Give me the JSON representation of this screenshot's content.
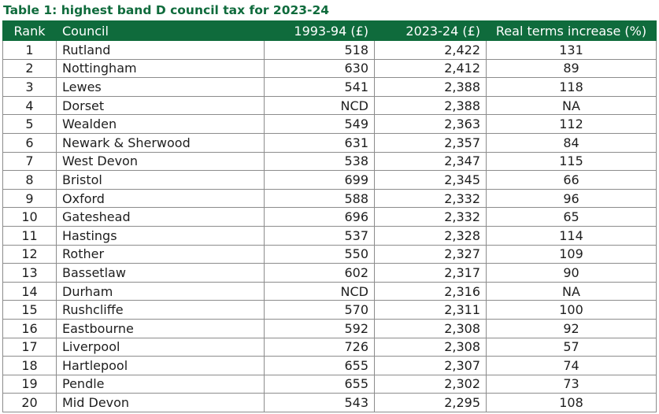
{
  "title": "Table 1: highest band D council tax for 2023-24",
  "colors": {
    "header_bg": "#0f6b3c",
    "header_text": "#ffffff",
    "title_text": "#0f6b3c",
    "border": "#8c8c8c"
  },
  "columns": [
    "Rank",
    "Council",
    "1993-94 (£)",
    "2023-24 (£)",
    "Real terms increase (%)"
  ],
  "rows": [
    [
      "1",
      "Rutland",
      "518",
      "2,422",
      "131"
    ],
    [
      "2",
      "Nottingham",
      "630",
      "2,412",
      "89"
    ],
    [
      "3",
      "Lewes",
      "541",
      "2,388",
      "118"
    ],
    [
      "4",
      "Dorset",
      "NCD",
      "2,388",
      "NA"
    ],
    [
      "5",
      "Wealden",
      "549",
      "2,363",
      "112"
    ],
    [
      "6",
      "Newark & Sherwood",
      "631",
      "2,357",
      "84"
    ],
    [
      "7",
      "West Devon",
      "538",
      "2,347",
      "115"
    ],
    [
      "8",
      "Bristol",
      "699",
      "2,345",
      "66"
    ],
    [
      "9",
      "Oxford",
      "588",
      "2,332",
      "96"
    ],
    [
      "10",
      "Gateshead",
      "696",
      "2,332",
      "65"
    ],
    [
      "11",
      "Hastings",
      "537",
      "2,328",
      "114"
    ],
    [
      "12",
      "Rother",
      "550",
      "2,327",
      "109"
    ],
    [
      "13",
      "Bassetlaw",
      "602",
      "2,317",
      "90"
    ],
    [
      "14",
      "Durham",
      "NCD",
      "2,316",
      "NA"
    ],
    [
      "15",
      "Rushcliffe",
      "570",
      "2,311",
      "100"
    ],
    [
      "16",
      "Eastbourne",
      "592",
      "2,308",
      "92"
    ],
    [
      "17",
      "Liverpool",
      "726",
      "2,308",
      "57"
    ],
    [
      "18",
      "Hartlepool",
      "655",
      "2,307",
      "74"
    ],
    [
      "19",
      "Pendle",
      "655",
      "2,302",
      "73"
    ],
    [
      "20",
      "Mid Devon",
      "543",
      "2,295",
      "108"
    ]
  ]
}
